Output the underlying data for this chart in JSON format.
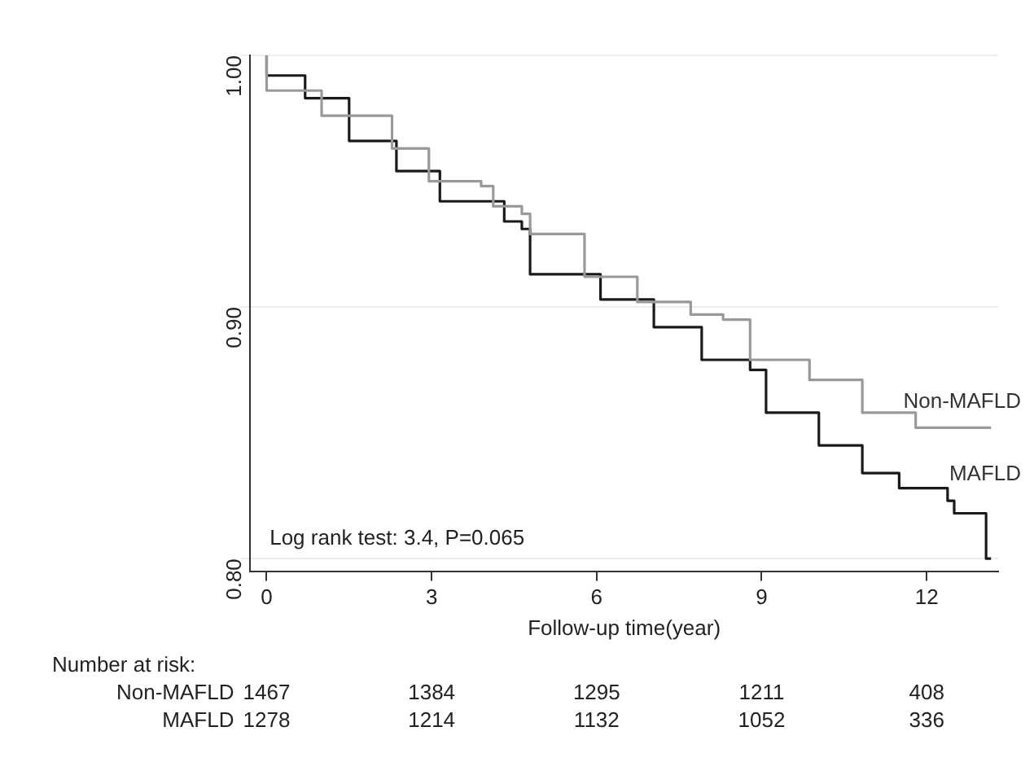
{
  "chart_data": {
    "type": "step",
    "xlabel": "Follow-up time(year)",
    "xlim": [
      -0.3,
      13.3
    ],
    "xticks": [
      0,
      3,
      6,
      9,
      12
    ],
    "ylim": [
      0.795,
      1.0
    ],
    "yticks": [
      {
        "value": 0.8,
        "label": "0.80"
      },
      {
        "value": 0.9,
        "label": "0.90"
      },
      {
        "value": 1.0,
        "label": "1.00"
      }
    ],
    "grid": "y",
    "legend": false,
    "series": [
      {
        "name": "Non-MAFLD",
        "color": "#999999",
        "x": [
          0,
          1.0,
          2.28,
          2.95,
          3.9,
          4.12,
          4.64,
          4.79,
          5.78,
          6.74,
          7.71,
          8.3,
          8.79,
          9.87,
          10.83,
          11.8,
          12.38,
          13.17
        ],
        "values": [
          1.0,
          0.986,
          0.976,
          0.963,
          0.95,
          0.948,
          0.94,
          0.937,
          0.929,
          0.912,
          0.902,
          0.897,
          0.895,
          0.879,
          0.871,
          0.858,
          0.852,
          0.852
        ]
      },
      {
        "name": "MAFLD",
        "color": "#1a1a1a",
        "x": [
          0,
          0.7,
          1.5,
          2.36,
          3.15,
          4.32,
          4.64,
          4.79,
          6.07,
          7.04,
          7.91,
          8.79,
          9.08,
          10.04,
          10.83,
          11.5,
          11.9,
          12.38,
          12.5,
          13.08,
          13.17
        ],
        "values": [
          1.0,
          0.992,
          0.983,
          0.966,
          0.954,
          0.942,
          0.934,
          0.931,
          0.913,
          0.903,
          0.892,
          0.879,
          0.875,
          0.858,
          0.845,
          0.834,
          0.828,
          0.828,
          0.823,
          0.818,
          0.8
        ]
      }
    ],
    "annotations": [
      "Log rank test: 3.4, P=0.065",
      "Number at risk:",
      "1467",
      "1384",
      "1295",
      "1211",
      "408",
      "1278",
      "1214",
      "1132",
      "1052",
      "336"
    ]
  }
}
